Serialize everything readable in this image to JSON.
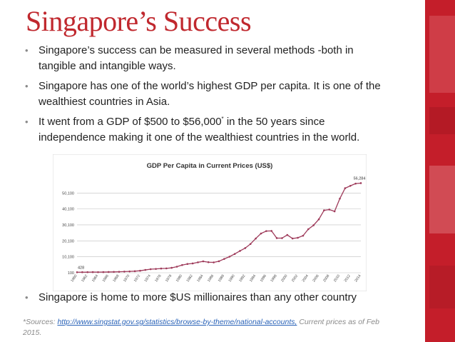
{
  "slide": {
    "title": "Singapore’s Success",
    "bullets": [
      {
        "text": "Singapore’s success can be measured in several methods -both in tangible and intangible ways."
      },
      {
        "text": "Singapore has one of the world’s highest GDP per capita. It is one of the wealthiest countries in Asia."
      },
      {
        "pre": "It went from a GDP of $500 to $56,000",
        "sup": "*",
        "post": " in the 50 years since independence making it one of the wealthiest countries in the world."
      }
    ],
    "last_bullet": "Singapore is home to more $US millionaires than any other country",
    "sources": {
      "prefix": "*Sources: ",
      "link": "http://www.singstat.gov.sg/statistics/browse-by-theme/national-accounts,",
      "suffix": " Current prices as of Feb 2015."
    },
    "bullet_glyph": "•"
  },
  "colors": {
    "title": "#c0282e",
    "accent_stripe": "#c41e2a",
    "line": "#9e3a5a",
    "link": "#2a63b8"
  },
  "chart_data": {
    "type": "line",
    "title": "GDP Per Capita in Current Prices (US$)",
    "yticks": [
      "100",
      "10,100",
      "20,100",
      "30,100",
      "40,100",
      "50,100"
    ],
    "ylim": [
      100,
      56000
    ],
    "xticks": [
      "1960",
      "1962",
      "1964",
      "1966",
      "1968",
      "1970",
      "1972",
      "1974",
      "1976",
      "1978",
      "1980",
      "1982",
      "1984",
      "1986",
      "1988",
      "1990",
      "1992",
      "1994",
      "1996",
      "1998",
      "2000",
      "2002",
      "2004",
      "2006",
      "2008",
      "2010",
      "2012",
      "2014"
    ],
    "x": [
      1960,
      1961,
      1962,
      1963,
      1964,
      1965,
      1966,
      1967,
      1968,
      1969,
      1970,
      1971,
      1972,
      1973,
      1974,
      1975,
      1976,
      1977,
      1978,
      1979,
      1980,
      1981,
      1982,
      1983,
      1984,
      1985,
      1986,
      1987,
      1988,
      1989,
      1990,
      1991,
      1992,
      1993,
      1994,
      1995,
      1996,
      1997,
      1998,
      1999,
      2000,
      2001,
      2002,
      2003,
      2004,
      2005,
      2006,
      2007,
      2008,
      2009,
      2010,
      2011,
      2012,
      2013,
      2014
    ],
    "values": [
      428,
      449,
      472,
      511,
      485,
      517,
      567,
      626,
      708,
      812,
      925,
      1071,
      1354,
      1863,
      2341,
      2490,
      2746,
      2846,
      3194,
      3901,
      4928,
      5596,
      5932,
      6633,
      7234,
      6712,
      6584,
      7290,
      8766,
      10172,
      11862,
      13768,
      15555,
      18138,
      21554,
      24702,
      26227,
      26327,
      21824,
      21796,
      23793,
      21577,
      22017,
      23320,
      27405,
      29870,
      33580,
      39224,
      39722,
      38578,
      46570,
      53094,
      54578,
      55980,
      56284
    ],
    "annotations": [
      {
        "label": "428",
        "at": "first"
      },
      {
        "label": "56,284",
        "at": "last"
      }
    ],
    "grid": true,
    "legend": "none"
  }
}
